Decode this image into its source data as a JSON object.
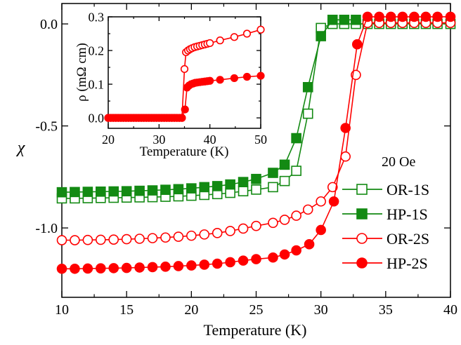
{
  "chart_data": [
    {
      "type": "scatter",
      "xlabel": "Temperature (K)",
      "ylabel": "χ",
      "xlim": [
        10,
        40
      ],
      "ylim": [
        -1.34,
        0.1
      ],
      "xticks": [
        10,
        15,
        20,
        25,
        30,
        35,
        40
      ],
      "xtick_labels": [
        "10",
        "15",
        "20",
        "25",
        "30",
        "35",
        "40"
      ],
      "yticks": [
        0.0,
        -0.5,
        -1.0
      ],
      "ytick_labels": [
        "0.0",
        "-0.5",
        "-1.0"
      ],
      "annotation": "20 Oe",
      "legend_position": "bottom-right",
      "grid": false,
      "series": [
        {
          "name": "OR-1S",
          "color": "#138a13",
          "marker": "open-square",
          "x": [
            10,
            11,
            12,
            13,
            14,
            15,
            16,
            17,
            18,
            19,
            20,
            21,
            22,
            23,
            24,
            25,
            26.3,
            27.2,
            28.1,
            29,
            30,
            30.9,
            31.8,
            32.7,
            33.6,
            34.5,
            35.4,
            36.3,
            37.2,
            38.1,
            39,
            40
          ],
          "y": [
            -0.855,
            -0.855,
            -0.854,
            -0.853,
            -0.852,
            -0.851,
            -0.85,
            -0.849,
            -0.847,
            -0.845,
            -0.842,
            -0.838,
            -0.834,
            -0.828,
            -0.82,
            -0.812,
            -0.8,
            -0.77,
            -0.72,
            -0.44,
            -0.02,
            0.0,
            0.0,
            0.0,
            0.0,
            0.0,
            0.0,
            0.0,
            0.0,
            0.0,
            0.0,
            0.0
          ]
        },
        {
          "name": "HP-1S",
          "color": "#138a13",
          "marker": "filled-square",
          "x": [
            10,
            11,
            12,
            13,
            14,
            15,
            16,
            17,
            18,
            19,
            20,
            21,
            22,
            23,
            24,
            25,
            26.3,
            27.2,
            28.1,
            29,
            30,
            30.9,
            31.8,
            32.7
          ],
          "y": [
            -0.825,
            -0.824,
            -0.823,
            -0.822,
            -0.821,
            -0.82,
            -0.818,
            -0.816,
            -0.813,
            -0.81,
            -0.806,
            -0.8,
            -0.795,
            -0.787,
            -0.775,
            -0.76,
            -0.73,
            -0.69,
            -0.56,
            -0.31,
            -0.06,
            0.02,
            0.02,
            0.02
          ]
        },
        {
          "name": "OR-2S",
          "color": "#ff0000",
          "marker": "open-circle",
          "x": [
            10,
            11,
            12,
            13,
            14,
            15,
            16,
            17,
            18,
            19,
            20,
            21,
            22,
            23,
            24,
            25,
            26.3,
            27.2,
            28.1,
            29,
            30,
            30.9,
            31.9,
            32.7,
            33.6,
            34.5,
            35.4,
            36.3,
            37.2,
            38.1,
            39,
            40
          ],
          "y": [
            -1.06,
            -1.06,
            -1.059,
            -1.058,
            -1.057,
            -1.055,
            -1.053,
            -1.05,
            -1.047,
            -1.043,
            -1.038,
            -1.032,
            -1.025,
            -1.015,
            -1.003,
            -0.99,
            -0.975,
            -0.96,
            -0.94,
            -0.91,
            -0.87,
            -0.8,
            -0.65,
            -0.25,
            0.005,
            0.005,
            0.005,
            0.005,
            0.005,
            0.005,
            0.005,
            0.005
          ]
        },
        {
          "name": "HP-2S",
          "color": "#ff0000",
          "marker": "filled-circle",
          "x": [
            10,
            11,
            12,
            13,
            14,
            15,
            16,
            17,
            18,
            19,
            20,
            21,
            22,
            23,
            24,
            25,
            26.3,
            27.2,
            28.1,
            29.1,
            30,
            31,
            31.9,
            32.8,
            33.6,
            34.5,
            35.4,
            36.3,
            37.2,
            38.1,
            39,
            40
          ],
          "y": [
            -1.2,
            -1.2,
            -1.199,
            -1.198,
            -1.197,
            -1.196,
            -1.194,
            -1.192,
            -1.19,
            -1.187,
            -1.184,
            -1.18,
            -1.175,
            -1.168,
            -1.16,
            -1.153,
            -1.145,
            -1.13,
            -1.11,
            -1.08,
            -1.01,
            -0.87,
            -0.51,
            -0.1,
            0.035,
            0.035,
            0.035,
            0.035,
            0.035,
            0.035,
            0.035,
            0.035
          ]
        }
      ]
    },
    {
      "type": "scatter",
      "inset": true,
      "xlabel": "Temperature (K)",
      "ylabel": "ρ (mΩ cm)",
      "xlim": [
        20,
        50
      ],
      "ylim": [
        -0.031,
        0.3
      ],
      "xticks": [
        20,
        30,
        40,
        50
      ],
      "xtick_labels": [
        "20",
        "30",
        "40",
        "50"
      ],
      "yticks": [
        0.0,
        0.1,
        0.2,
        0.3
      ],
      "ytick_labels": [
        "0.0",
        "0.1",
        "0.2",
        "0.3"
      ],
      "series": [
        {
          "color": "#ff0000",
          "marker": "open-circle",
          "x": [
            20,
            20.5,
            21,
            21.5,
            22,
            22.5,
            23,
            23.5,
            24,
            24.5,
            25,
            25.5,
            26,
            26.5,
            27,
            27.5,
            28,
            28.5,
            29,
            29.5,
            30,
            30.5,
            31,
            31.5,
            32,
            32.5,
            33,
            33.5,
            34,
            34.5,
            35,
            35.3,
            35.7,
            36.1,
            36.5,
            37,
            37.5,
            38,
            38.5,
            39,
            39.5,
            40,
            42,
            44.8,
            47.3,
            50
          ],
          "y": [
            0,
            0,
            0,
            0,
            0,
            0,
            0,
            0,
            0,
            0,
            0,
            0,
            0,
            0,
            0,
            0,
            0,
            0,
            0,
            0,
            0,
            0,
            0,
            0,
            0,
            0,
            0,
            0,
            0,
            0,
            0.145,
            0.195,
            0.2,
            0.204,
            0.207,
            0.21,
            0.212,
            0.214,
            0.216,
            0.218,
            0.22,
            0.222,
            0.23,
            0.24,
            0.25,
            0.262
          ]
        },
        {
          "color": "#ff0000",
          "marker": "filled-circle",
          "x": [
            20,
            20.5,
            21,
            21.5,
            22,
            22.5,
            23,
            23.5,
            24,
            24.5,
            25,
            25.5,
            26,
            26.5,
            27,
            27.5,
            28,
            28.5,
            29,
            29.5,
            30,
            30.5,
            31,
            31.5,
            32,
            32.5,
            33,
            33.5,
            34,
            34.5,
            35.1,
            35.5,
            35.9,
            36.3,
            36.7,
            37.1,
            37.5,
            38,
            38.5,
            39,
            39.5,
            40,
            42,
            44.8,
            47.3,
            50
          ],
          "y": [
            0,
            0,
            0,
            0,
            0,
            0,
            0,
            0,
            0,
            0,
            0,
            0,
            0,
            0,
            0,
            0,
            0,
            0,
            0,
            0,
            0,
            0,
            0,
            0,
            0,
            0,
            0,
            0,
            0,
            0,
            0.025,
            0.09,
            0.096,
            0.1,
            0.102,
            0.104,
            0.105,
            0.106,
            0.107,
            0.108,
            0.109,
            0.11,
            0.113,
            0.118,
            0.122,
            0.125
          ]
        }
      ]
    }
  ]
}
